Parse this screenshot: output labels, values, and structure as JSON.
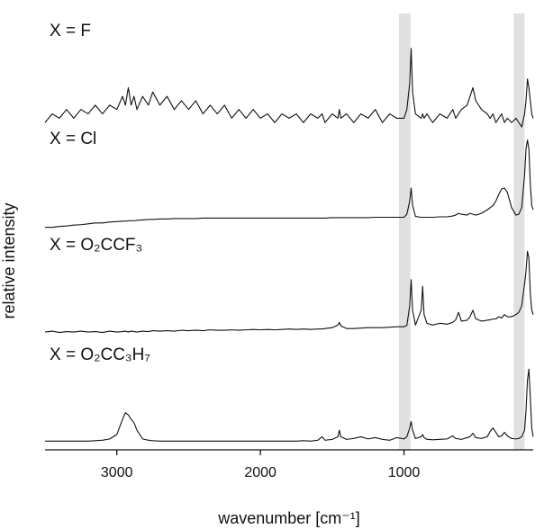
{
  "chart_data": {
    "type": "line",
    "xlabel": "wavenumber [cm⁻¹]",
    "ylabel": "relative intensity",
    "xlim": [
      3500,
      100
    ],
    "ylim": [
      0,
      10
    ],
    "xticks": [
      3000,
      2000,
      1000
    ],
    "highlight_bands": [
      [
        1035,
        955
      ],
      [
        235,
        160
      ]
    ],
    "band_color": "#e0e0e0",
    "x": [
      3500,
      3450,
      3400,
      3350,
      3300,
      3250,
      3200,
      3150,
      3100,
      3050,
      3000,
      2960,
      2940,
      2920,
      2900,
      2880,
      2860,
      2820,
      2780,
      2750,
      2700,
      2650,
      2600,
      2550,
      2500,
      2450,
      2400,
      2350,
      2300,
      2250,
      2200,
      2150,
      2100,
      2050,
      2000,
      1950,
      1900,
      1850,
      1800,
      1750,
      1700,
      1650,
      1600,
      1570,
      1550,
      1500,
      1460,
      1450,
      1440,
      1400,
      1350,
      1300,
      1250,
      1200,
      1150,
      1100,
      1050,
      1000,
      980,
      960,
      950,
      940,
      920,
      880,
      870,
      860,
      840,
      800,
      750,
      700,
      660,
      640,
      620,
      600,
      560,
      540,
      520,
      500,
      460,
      420,
      400,
      380,
      360,
      340,
      320,
      300,
      280,
      250,
      220,
      200,
      180,
      160,
      150,
      140,
      130,
      120,
      110,
      100
    ],
    "series": [
      {
        "name": "X = F",
        "color": "#111111",
        "values": [
          7.5,
          7.7,
          7.6,
          7.8,
          7.6,
          7.8,
          7.7,
          7.9,
          7.7,
          7.9,
          7.8,
          8.1,
          7.9,
          8.3,
          7.9,
          8.1,
          7.8,
          8.1,
          7.9,
          8.2,
          7.9,
          8.1,
          7.8,
          8.0,
          7.8,
          8.0,
          7.7,
          7.9,
          7.7,
          7.9,
          7.6,
          7.8,
          7.6,
          7.8,
          7.6,
          7.7,
          7.5,
          7.7,
          7.6,
          7.7,
          7.5,
          7.7,
          7.6,
          7.7,
          7.5,
          7.7,
          7.6,
          7.8,
          7.6,
          7.7,
          7.5,
          7.7,
          7.6,
          7.8,
          7.5,
          7.7,
          7.6,
          7.6,
          7.8,
          8.4,
          9.2,
          8.2,
          7.7,
          7.6,
          7.7,
          7.6,
          7.7,
          7.5,
          7.7,
          7.6,
          7.8,
          7.6,
          7.7,
          7.8,
          7.9,
          8.1,
          8.3,
          8.0,
          7.8,
          7.7,
          7.6,
          7.7,
          7.5,
          7.6,
          7.7,
          7.5,
          7.6,
          7.5,
          7.6,
          7.5,
          7.4,
          7.7,
          8.0,
          8.5,
          8.3,
          8.0,
          7.7,
          7.6
        ]
      },
      {
        "name": "X = Cl",
        "color": "#111111",
        "values": [
          5.1,
          5.1,
          5.12,
          5.13,
          5.15,
          5.16,
          5.18,
          5.2,
          5.2,
          5.22,
          5.23,
          5.24,
          5.24,
          5.25,
          5.25,
          5.25,
          5.26,
          5.27,
          5.28,
          5.28,
          5.29,
          5.29,
          5.3,
          5.3,
          5.3,
          5.3,
          5.31,
          5.31,
          5.31,
          5.31,
          5.31,
          5.31,
          5.31,
          5.31,
          5.31,
          5.31,
          5.31,
          5.31,
          5.31,
          5.31,
          5.31,
          5.31,
          5.31,
          5.31,
          5.31,
          5.32,
          5.32,
          5.32,
          5.32,
          5.32,
          5.32,
          5.32,
          5.32,
          5.33,
          5.33,
          5.33,
          5.33,
          5.33,
          5.4,
          5.7,
          6.0,
          5.6,
          5.35,
          5.33,
          5.33,
          5.33,
          5.33,
          5.33,
          5.34,
          5.34,
          5.36,
          5.38,
          5.42,
          5.4,
          5.38,
          5.42,
          5.4,
          5.38,
          5.42,
          5.5,
          5.55,
          5.6,
          5.7,
          5.85,
          5.98,
          6.0,
          5.9,
          5.55,
          5.38,
          5.4,
          5.55,
          6.3,
          6.9,
          7.1,
          6.9,
          6.1,
          5.6,
          5.5
        ]
      },
      {
        "name": "X = O₂CCF₃",
        "color": "#111111",
        "values": [
          2.7,
          2.72,
          2.69,
          2.71,
          2.7,
          2.72,
          2.7,
          2.71,
          2.69,
          2.72,
          2.7,
          2.71,
          2.72,
          2.7,
          2.72,
          2.71,
          2.7,
          2.72,
          2.71,
          2.73,
          2.72,
          2.73,
          2.72,
          2.74,
          2.73,
          2.74,
          2.73,
          2.75,
          2.74,
          2.74,
          2.75,
          2.74,
          2.75,
          2.76,
          2.75,
          2.76,
          2.75,
          2.76,
          2.77,
          2.76,
          2.77,
          2.76,
          2.77,
          2.77,
          2.78,
          2.8,
          2.86,
          2.92,
          2.84,
          2.78,
          2.78,
          2.79,
          2.8,
          2.8,
          2.8,
          2.81,
          2.82,
          2.82,
          2.85,
          3.3,
          3.9,
          3.2,
          2.86,
          3.2,
          3.75,
          3.1,
          2.9,
          2.86,
          2.9,
          2.88,
          2.92,
          2.98,
          3.15,
          2.95,
          2.97,
          3.05,
          3.2,
          3.0,
          2.95,
          2.97,
          2.98,
          3.0,
          3.0,
          3.05,
          3.02,
          3.1,
          3.05,
          3.05,
          3.1,
          3.15,
          3.3,
          3.8,
          4.1,
          4.55,
          4.4,
          3.6,
          3.2,
          3.1
        ]
      },
      {
        "name": "X = O₂CC₃H₇",
        "color": "#111111",
        "values": [
          0.2,
          0.2,
          0.2,
          0.2,
          0.2,
          0.2,
          0.2,
          0.21,
          0.22,
          0.25,
          0.35,
          0.7,
          0.85,
          0.8,
          0.7,
          0.62,
          0.45,
          0.25,
          0.22,
          0.21,
          0.2,
          0.2,
          0.2,
          0.2,
          0.2,
          0.2,
          0.2,
          0.2,
          0.2,
          0.2,
          0.2,
          0.2,
          0.2,
          0.2,
          0.2,
          0.2,
          0.2,
          0.2,
          0.2,
          0.2,
          0.21,
          0.2,
          0.22,
          0.3,
          0.22,
          0.24,
          0.3,
          0.45,
          0.3,
          0.24,
          0.26,
          0.3,
          0.25,
          0.28,
          0.24,
          0.22,
          0.28,
          0.25,
          0.3,
          0.5,
          0.65,
          0.45,
          0.26,
          0.3,
          0.35,
          0.28,
          0.24,
          0.23,
          0.24,
          0.25,
          0.32,
          0.26,
          0.25,
          0.24,
          0.28,
          0.3,
          0.38,
          0.28,
          0.26,
          0.3,
          0.42,
          0.5,
          0.4,
          0.3,
          0.32,
          0.4,
          0.32,
          0.26,
          0.25,
          0.26,
          0.3,
          0.45,
          0.9,
          1.6,
          1.85,
          1.2,
          0.5,
          0.3
        ]
      }
    ]
  }
}
